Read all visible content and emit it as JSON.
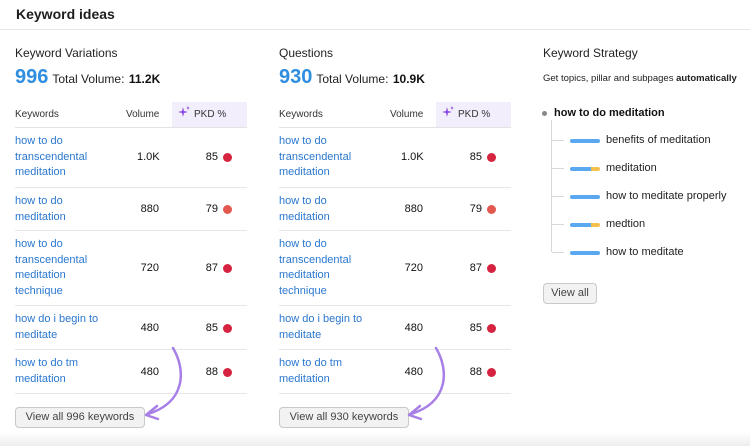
{
  "header": {
    "title": "Keyword ideas"
  },
  "columns_header": {
    "keywords": "Keywords",
    "volume": "Volume",
    "pkd": "PKD %"
  },
  "variations": {
    "title": "Keyword Variations",
    "count": "996",
    "total_label": "Total Volume:",
    "total_value": "11.2K",
    "rows": [
      {
        "keyword": "how to do transcendental meditation",
        "volume": "1.0K",
        "pkd": "85",
        "dot_color": "#d6233f"
      },
      {
        "keyword": "how to do meditation",
        "volume": "880",
        "pkd": "79",
        "dot_color": "#e2584f"
      },
      {
        "keyword": "how to do transcendental meditation technique",
        "volume": "720",
        "pkd": "87",
        "dot_color": "#d6233f"
      },
      {
        "keyword": "how do i begin to meditate",
        "volume": "480",
        "pkd": "85",
        "dot_color": "#d6233f"
      },
      {
        "keyword": "how to do tm meditation",
        "volume": "480",
        "pkd": "88",
        "dot_color": "#d6233f"
      }
    ],
    "view_all": "View all 996 keywords"
  },
  "questions": {
    "title": "Questions",
    "count": "930",
    "total_label": "Total Volume:",
    "total_value": "10.9K",
    "rows": [
      {
        "keyword": "how to do transcendental meditation",
        "volume": "1.0K",
        "pkd": "85",
        "dot_color": "#d6233f"
      },
      {
        "keyword": "how to do meditation",
        "volume": "880",
        "pkd": "79",
        "dot_color": "#e2584f"
      },
      {
        "keyword": "how to do transcendental meditation technique",
        "volume": "720",
        "pkd": "87",
        "dot_color": "#d6233f"
      },
      {
        "keyword": "how do i begin to meditate",
        "volume": "480",
        "pkd": "85",
        "dot_color": "#d6233f"
      },
      {
        "keyword": "how to do tm meditation",
        "volume": "480",
        "pkd": "88",
        "dot_color": "#d6233f"
      }
    ],
    "view_all": "View all 930 keywords"
  },
  "strategy": {
    "title": "Keyword Strategy",
    "subtitle_pre": "Get topics, pillar and subpages",
    "subtitle_bold": "automatically",
    "root": "how to do meditation",
    "items": [
      {
        "label": "benefits of meditation",
        "mixed": false
      },
      {
        "label": "meditation",
        "mixed": true
      },
      {
        "label": "how to meditate properly",
        "mixed": false
      },
      {
        "label": "medtion",
        "mixed": true
      },
      {
        "label": "how to meditate",
        "mixed": false
      }
    ],
    "view_all": "View all"
  },
  "colors": {
    "accent_blue": "#2f8ee0",
    "link_blue": "#2a77cf",
    "pkd_high": "#d6233f",
    "pkd_mid": "#e2584f",
    "annotation_arrow": "#a77fe6"
  },
  "icons": {
    "pkd_header": "sparkle-icon",
    "annotation": "curved-arrow-icon"
  }
}
